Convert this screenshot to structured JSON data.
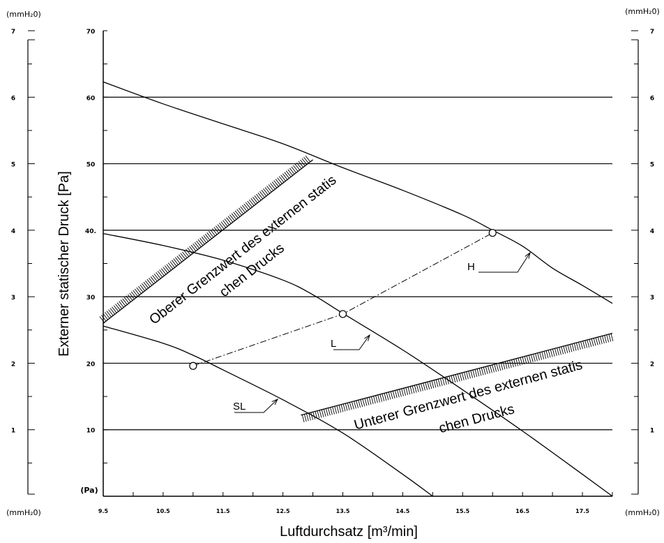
{
  "chart_data": {
    "type": "line",
    "title": "",
    "xlabel": "Luftdurchsatz [m³/min]",
    "ylabel": "Externer statischer Druck [Pa]",
    "xlim": [
      9.5,
      18
    ],
    "ylim": [
      0,
      70
    ],
    "x_ticks": [
      "9.5",
      "10.5",
      "11.5",
      "12.5",
      "13.5",
      "14.5",
      "15.5",
      "16.5",
      "17.5"
    ],
    "y_ticks": [
      "10",
      "20",
      "30",
      "40.",
      "50",
      "60",
      "70"
    ],
    "y_unit": "(Pa)",
    "secondary_unit": "(mmH₂0)",
    "secondary_ticks": [
      "1",
      "2",
      "3",
      "4",
      "5",
      "6",
      "7"
    ],
    "series": [
      {
        "name": "H",
        "x": [
          9.5,
          10.5,
          11.5,
          12.5,
          13.5,
          14.5,
          15.5,
          16.0,
          16.5,
          17.0,
          17.5,
          18.0
        ],
        "y": [
          62.3,
          59.0,
          56.0,
          53.0,
          49.4,
          46.0,
          42.3,
          40.0,
          37.6,
          34.3,
          31.7,
          29.0
        ]
      },
      {
        "name": "L",
        "x": [
          9.5,
          10.5,
          11.5,
          12.5,
          13.0,
          13.5,
          14.5,
          15.5,
          16.5,
          17.5,
          18.0
        ],
        "y": [
          39.5,
          37.7,
          35.5,
          32.5,
          30.3,
          27.5,
          22.0,
          16.0,
          9.8,
          3.3,
          0.0
        ]
      },
      {
        "name": "SL",
        "x": [
          9.5,
          10.5,
          11.0,
          11.5,
          12.5,
          13.5,
          14.5,
          15.0
        ],
        "y": [
          25.6,
          23.0,
          21.2,
          19.0,
          14.5,
          9.5,
          3.3,
          0.0
        ]
      }
    ],
    "operating_points": {
      "x": [
        11.0,
        13.5,
        16.0
      ],
      "y": [
        19.6,
        27.4,
        39.6
      ]
    },
    "curve_labels": [
      "H",
      "L",
      "SL"
    ],
    "annotations": {
      "upper_limit": {
        "x": [
          9.5,
          13.0
        ],
        "y": [
          26.0,
          50.6
        ],
        "lines": [
          "Oberer Grenzwert des externen statis",
          "chen Drucks"
        ]
      },
      "lower_limit": {
        "x": [
          12.8,
          18.0
        ],
        "y": [
          12.2,
          24.5
        ],
        "lines": [
          "Unterer Grenzwert des externen statis",
          "chen Drucks"
        ]
      }
    },
    "grid": "horizontal",
    "legend": "none"
  },
  "colors": {
    "line": "#000000",
    "background": "#ffffff"
  }
}
